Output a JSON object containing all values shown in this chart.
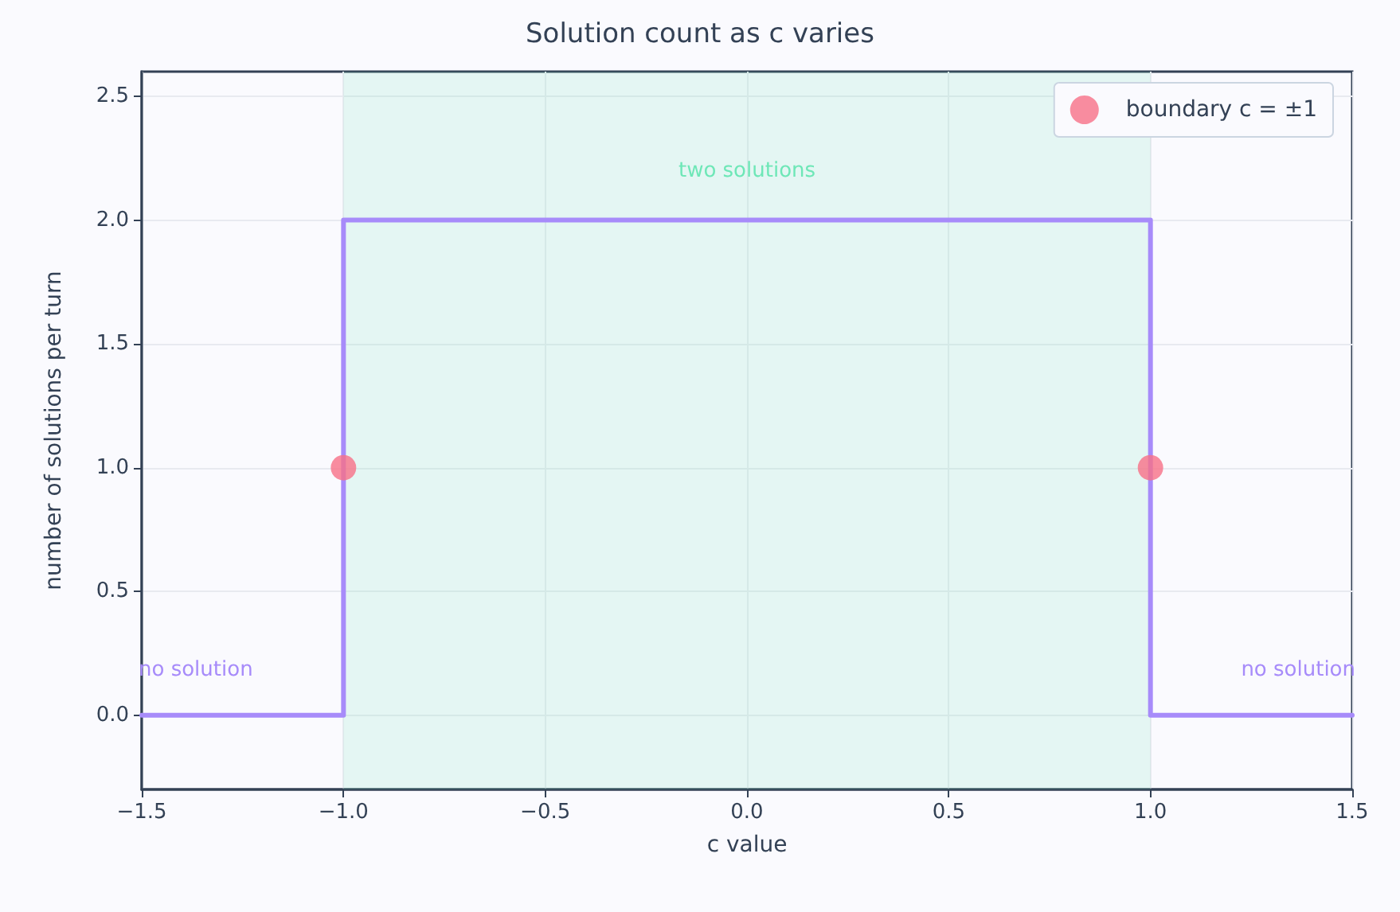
{
  "chart_data": {
    "type": "line",
    "title": "Solution count as c varies",
    "xlabel": "c value",
    "ylabel": "number of solutions per turn",
    "series": [
      {
        "color": "#a78bfa",
        "x": [
          -1.5,
          -1,
          -1,
          1,
          1,
          1.5
        ],
        "values": [
          0,
          0,
          2,
          2,
          0,
          0
        ],
        "marker": "none"
      },
      {
        "type": "scatter",
        "name": "boundary c = ±1",
        "color": "#f87187",
        "x": [
          -1,
          1
        ],
        "values": [
          1,
          1
        ],
        "marker": "circle"
      }
    ],
    "xlim": [
      -1.5,
      1.5
    ],
    "xticks": [
      {
        "value": -1.5,
        "label": "−1.5"
      },
      {
        "value": -1,
        "label": "−1.0"
      },
      {
        "value": -0.5,
        "label": "−0.5"
      },
      {
        "value": 0,
        "label": "0.0"
      },
      {
        "value": 0.5,
        "label": "0.5"
      },
      {
        "value": 1,
        "label": "1.0"
      },
      {
        "value": 1.5,
        "label": "1.5"
      }
    ],
    "ylim": [
      -0.3,
      2.6
    ],
    "yticks": [
      {
        "value": 0,
        "label": "0.0"
      },
      {
        "value": 0.5,
        "label": "0.5"
      },
      {
        "value": 1,
        "label": "1.0"
      },
      {
        "value": 1.5,
        "label": "1.5"
      },
      {
        "value": 2,
        "label": "2.0"
      },
      {
        "value": 2.5,
        "label": "2.5"
      }
    ],
    "bands": [
      {
        "axis": "x",
        "from": -1,
        "to": 1,
        "label": "two solutions",
        "color": "#6ee7b7"
      }
    ],
    "annotations": [
      "no solution",
      "no solution"
    ],
    "grid": true,
    "legend": "top right"
  }
}
